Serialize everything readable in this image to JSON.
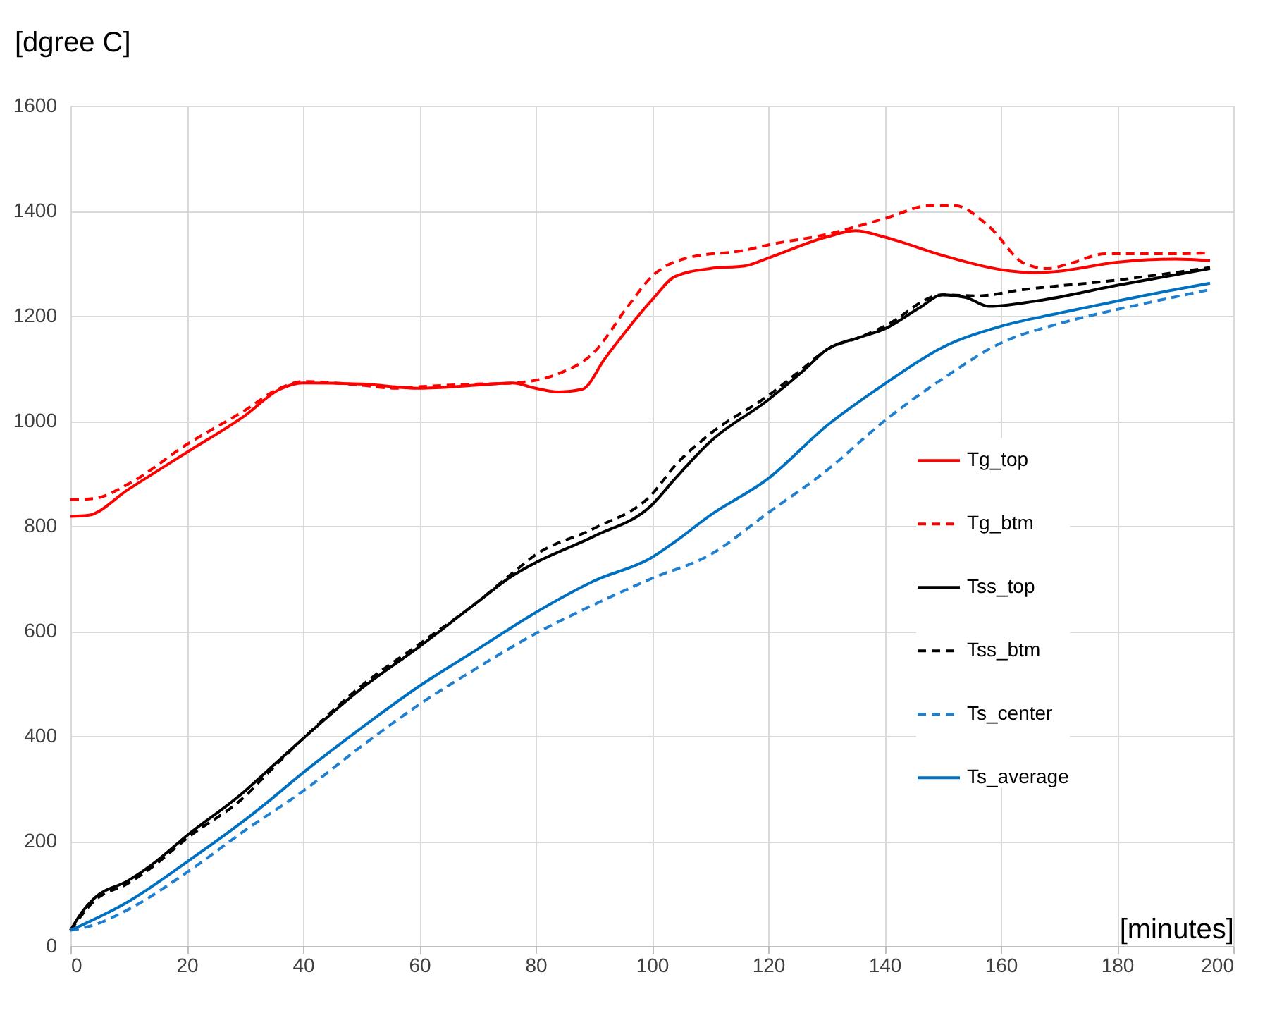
{
  "chart_data": {
    "type": "line",
    "xlabel": "[minutes]",
    "ylabel": "[dgree C]",
    "xlim": [
      0,
      200
    ],
    "xticks": [
      0,
      20,
      40,
      60,
      80,
      100,
      120,
      140,
      160,
      180,
      200
    ],
    "ylim": [
      0,
      1600
    ],
    "yticks": [
      0,
      200,
      400,
      600,
      800,
      1000,
      1200,
      1400,
      1600
    ],
    "grid": true,
    "legend": "right",
    "marker": "none",
    "series": [
      {
        "name": "Tg_top",
        "color": "#ff0000",
        "line_style": "solid",
        "x": [
          0,
          3,
          10,
          20,
          30,
          36,
          40,
          50,
          60,
          70,
          76,
          80,
          84,
          88,
          92,
          100,
          104,
          110,
          116,
          120,
          130,
          135,
          140,
          150,
          160,
          166,
          170,
          180,
          190,
          196
        ],
        "values": [
          818,
          820,
          870,
          940,
          1010,
          1060,
          1072,
          1070,
          1062,
          1068,
          1072,
          1062,
          1055,
          1060,
          1120,
          1230,
          1275,
          1290,
          1295,
          1310,
          1350,
          1362,
          1350,
          1315,
          1288,
          1282,
          1285,
          1302,
          1308,
          1305
        ]
      },
      {
        "name": "Tg_btm",
        "color": "#ff0000",
        "line_style": "dashed",
        "x": [
          0,
          4,
          10,
          20,
          30,
          36,
          40,
          50,
          56,
          60,
          70,
          76,
          84,
          90,
          96,
          100,
          106,
          116,
          120,
          130,
          140,
          148,
          152,
          158,
          164,
          168,
          172,
          178,
          190,
          196
        ],
        "values": [
          850,
          852,
          880,
          955,
          1020,
          1062,
          1075,
          1068,
          1062,
          1065,
          1070,
          1072,
          1090,
          1130,
          1220,
          1275,
          1310,
          1325,
          1335,
          1355,
          1385,
          1410,
          1410,
          1370,
          1300,
          1290,
          1300,
          1318,
          1318,
          1320
        ]
      },
      {
        "name": "Tss_top",
        "color": "#000000",
        "line_style": "solid",
        "x": [
          0,
          2,
          4,
          10,
          14,
          20,
          30,
          34,
          40,
          50,
          60,
          70,
          76,
          80,
          90,
          100,
          104,
          110,
          120,
          126,
          130,
          136,
          140,
          146,
          150,
          154,
          158,
          166,
          180,
          196
        ],
        "values": [
          30,
          65,
          90,
          125,
          155,
          210,
          295,
          335,
          395,
          490,
          570,
          655,
          705,
          730,
          780,
          840,
          890,
          960,
          1040,
          1095,
          1135,
          1160,
          1175,
          1215,
          1240,
          1235,
          1218,
          1228,
          1258,
          1290
        ]
      },
      {
        "name": "Tss_btm",
        "color": "#000000",
        "line_style": "dashed",
        "x": [
          0,
          4,
          10,
          14,
          20,
          30,
          34,
          40,
          50,
          60,
          70,
          76,
          80,
          90,
          100,
          104,
          110,
          120,
          126,
          130,
          136,
          140,
          150,
          156,
          164,
          180,
          196
        ],
        "values": [
          30,
          85,
          120,
          150,
          205,
          285,
          330,
          395,
          495,
          575,
          655,
          710,
          745,
          795,
          860,
          915,
          975,
          1048,
          1100,
          1135,
          1160,
          1180,
          1240,
          1238,
          1250,
          1268,
          1292
        ]
      },
      {
        "name": "Ts_center",
        "color": "#1f7fd0",
        "line_style": "dashed",
        "x": [
          0,
          4,
          10,
          20,
          30,
          40,
          50,
          60,
          70,
          80,
          90,
          100,
          110,
          120,
          130,
          140,
          150,
          160,
          170,
          180,
          190,
          196
        ],
        "values": [
          30,
          40,
          70,
          140,
          220,
          295,
          380,
          460,
          530,
          595,
          650,
          700,
          745,
          825,
          905,
          1000,
          1080,
          1148,
          1185,
          1212,
          1236,
          1250
        ]
      },
      {
        "name": "Ts_average",
        "color": "#0070c0",
        "line_style": "solid",
        "x": [
          0,
          10,
          20,
          30,
          34,
          40,
          50,
          60,
          70,
          80,
          90,
          100,
          104,
          110,
          120,
          130,
          140,
          150,
          160,
          170,
          180,
          190,
          196
        ],
        "values": [
          30,
          85,
          160,
          240,
          275,
          330,
          415,
          495,
          565,
          635,
          695,
          740,
          770,
          820,
          890,
          990,
          1070,
          1140,
          1180,
          1205,
          1228,
          1250,
          1262
        ]
      }
    ]
  }
}
